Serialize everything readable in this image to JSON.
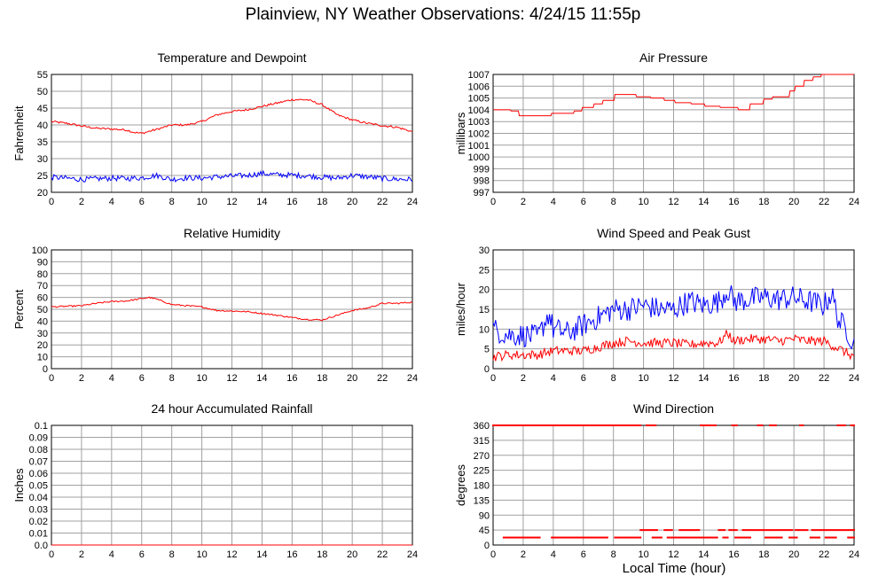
{
  "page": {
    "title": "Plainview, NY Weather Observations: 4/24/15 11:55p",
    "xlabel": "Local Time (hour)"
  },
  "chart_data": [
    {
      "id": "temp",
      "type": "line",
      "title": "Temperature and Dewpoint",
      "ylabel": "Fahrenheit",
      "xlim": [
        0,
        24
      ],
      "ylim": [
        20,
        55
      ],
      "xticks": [
        0,
        2,
        4,
        6,
        8,
        10,
        12,
        14,
        16,
        18,
        20,
        22,
        24
      ],
      "yticks": [
        20,
        25,
        30,
        35,
        40,
        45,
        50,
        55
      ],
      "ytick_labels": [
        "20",
        "25",
        "30",
        "35",
        "40",
        "45",
        "50",
        "55"
      ],
      "grid": true,
      "series": [
        {
          "color": "#ff0000",
          "mode": "line",
          "jitter": 0.3,
          "x": [
            0,
            1,
            2,
            3,
            4,
            5,
            5.5,
            6,
            7,
            8,
            9,
            10,
            11,
            12,
            13,
            14,
            15,
            16,
            17,
            18,
            19,
            20,
            21,
            22,
            23,
            24
          ],
          "y": [
            41,
            40.5,
            39.7,
            39,
            38.8,
            38.5,
            37.8,
            37.5,
            38.7,
            40,
            40,
            41,
            43,
            44,
            44.5,
            45.5,
            46.5,
            47.5,
            47.5,
            46,
            43,
            41.5,
            40.5,
            39.8,
            39.3,
            38
          ]
        },
        {
          "color": "#0000ff",
          "mode": "line",
          "jitter": 0.8,
          "x": [
            0,
            1,
            2,
            3,
            4,
            5,
            6,
            7,
            8,
            9,
            10,
            11,
            12,
            13,
            14,
            15,
            16,
            17,
            18,
            19,
            20,
            21,
            22,
            23,
            24
          ],
          "y": [
            24.5,
            24.2,
            23.8,
            24,
            24.2,
            24.1,
            24.3,
            25,
            23.8,
            24.3,
            24.2,
            24.6,
            24.8,
            25,
            25.6,
            25.2,
            25.1,
            24.9,
            24.5,
            24.2,
            25,
            24.6,
            24.1,
            23.9,
            23.8
          ]
        }
      ]
    },
    {
      "id": "pressure",
      "type": "line",
      "title": "Air Pressure",
      "ylabel": "millibars",
      "xlim": [
        0,
        24
      ],
      "ylim": [
        997,
        1007
      ],
      "xticks": [
        0,
        2,
        4,
        6,
        8,
        10,
        12,
        14,
        16,
        18,
        20,
        22,
        24
      ],
      "yticks": [
        997,
        998,
        999,
        1000,
        1001,
        1002,
        1003,
        1004,
        1005,
        1006,
        1007
      ],
      "ytick_labels": [
        "997",
        "998",
        "999",
        "1000",
        "1001",
        "1002",
        "1003",
        "1004",
        "1005",
        "1006",
        "1007"
      ],
      "grid": true,
      "series": [
        {
          "color": "#ff0000",
          "mode": "step",
          "jitter": 0,
          "x": [
            0,
            1.2,
            1.7,
            3.9,
            5.4,
            5.9,
            6.7,
            7.3,
            8.1,
            9.5,
            10.5,
            11.4,
            12.1,
            13.2,
            14.1,
            15.1,
            16.3,
            17.1,
            18,
            18.6,
            19.7,
            20.1,
            20.7,
            21.3,
            21.8,
            24
          ],
          "y": [
            1004,
            1003.9,
            1003.5,
            1003.7,
            1003.9,
            1004.2,
            1004.5,
            1004.8,
            1005.3,
            1005.1,
            1005,
            1004.8,
            1004.6,
            1004.5,
            1004.3,
            1004.2,
            1004,
            1004.5,
            1004.9,
            1005.1,
            1005.6,
            1006,
            1006.5,
            1006.8,
            1007,
            1007
          ]
        }
      ]
    },
    {
      "id": "humidity",
      "type": "line",
      "title": "Relative Humidity",
      "ylabel": "Percent",
      "xlim": [
        0,
        24
      ],
      "ylim": [
        0,
        100
      ],
      "xticks": [
        0,
        2,
        4,
        6,
        8,
        10,
        12,
        14,
        16,
        18,
        20,
        22,
        24
      ],
      "yticks": [
        0,
        10,
        20,
        30,
        40,
        50,
        60,
        70,
        80,
        90,
        100
      ],
      "ytick_labels": [
        "0",
        "10",
        "20",
        "30",
        "40",
        "50",
        "60",
        "70",
        "80",
        "90",
        "100"
      ],
      "grid": true,
      "series": [
        {
          "color": "#ff0000",
          "mode": "line",
          "jitter": 0.6,
          "x": [
            0,
            1,
            2,
            3,
            4,
            5,
            6,
            6.5,
            7,
            8,
            9,
            10,
            11,
            12,
            13,
            14,
            15,
            16,
            17,
            18,
            19,
            20,
            21,
            22,
            23,
            24
          ],
          "y": [
            52,
            52.5,
            53,
            55,
            56.5,
            57,
            59,
            60,
            58.5,
            54,
            53,
            52,
            49,
            48.5,
            48,
            46.5,
            45,
            43,
            41.5,
            41,
            45,
            49,
            51,
            55,
            55,
            56
          ]
        }
      ]
    },
    {
      "id": "wind",
      "type": "line",
      "title": "Wind Speed and Peak Gust",
      "ylabel": "miles/hour",
      "xlim": [
        0,
        24
      ],
      "ylim": [
        0,
        30
      ],
      "xticks": [
        0,
        2,
        4,
        6,
        8,
        10,
        12,
        14,
        16,
        18,
        20,
        22,
        24
      ],
      "yticks": [
        0,
        5,
        10,
        15,
        20,
        25,
        30
      ],
      "ytick_labels": [
        "0",
        "5",
        "10",
        "15",
        "20",
        "25",
        "30"
      ],
      "grid": true,
      "series": [
        {
          "color": "#0000ff",
          "mode": "line",
          "jitter": 3.0,
          "x": [
            0,
            1,
            2,
            3,
            3.7,
            4,
            5,
            6,
            7,
            8,
            9,
            10,
            11,
            12,
            13,
            14,
            15,
            15.6,
            16,
            17,
            18,
            19,
            20,
            21,
            22,
            22.5,
            23,
            23.5,
            24
          ],
          "y": [
            10,
            8.5,
            8.5,
            8,
            14,
            10,
            9,
            11,
            13,
            15,
            15,
            16,
            15,
            15,
            17,
            16,
            17,
            20,
            17,
            17.5,
            18,
            17.5,
            18,
            17,
            16,
            19,
            12,
            10,
            6
          ]
        },
        {
          "color": "#ff0000",
          "mode": "line",
          "jitter": 1.2,
          "x": [
            0,
            1,
            2,
            3,
            4,
            5,
            6,
            7,
            8,
            9,
            10,
            11,
            12,
            13,
            14,
            15,
            15.6,
            16,
            17,
            18,
            19,
            20,
            21,
            22,
            23,
            24
          ],
          "y": [
            3,
            3.5,
            3.5,
            3.5,
            4.5,
            4.5,
            4.5,
            5.5,
            6.5,
            7,
            6.5,
            6.5,
            6.5,
            6,
            6.5,
            6.5,
            9,
            7,
            7.5,
            7.5,
            7,
            7.5,
            7,
            7,
            5,
            3
          ]
        }
      ]
    },
    {
      "id": "rain",
      "type": "line",
      "title": "24 hour Accumulated Rainfall",
      "ylabel": "Inches",
      "xlim": [
        0,
        24
      ],
      "ylim": [
        0,
        0.1
      ],
      "xticks": [
        0,
        2,
        4,
        6,
        8,
        10,
        12,
        14,
        16,
        18,
        20,
        22,
        24
      ],
      "yticks": [
        0,
        0.01,
        0.02,
        0.03,
        0.04,
        0.05,
        0.06,
        0.07,
        0.08,
        0.09,
        0.1
      ],
      "ytick_labels": [
        "0.0",
        "0.01",
        "0.02",
        "0.03",
        "0.04",
        "0.05",
        "0.06",
        "0.07",
        "0.08",
        "0.09",
        "0.1"
      ],
      "grid": true,
      "series": [
        {
          "color": "#ff0000",
          "mode": "line",
          "jitter": 0,
          "x": [
            0,
            24
          ],
          "y": [
            0,
            0
          ]
        }
      ]
    },
    {
      "id": "direction",
      "type": "scatter",
      "title": "Wind Direction",
      "ylabel": "degrees",
      "xlim": [
        0,
        24
      ],
      "ylim": [
        0,
        360
      ],
      "xticks": [
        0,
        2,
        4,
        6,
        8,
        10,
        12,
        14,
        16,
        18,
        20,
        22,
        24
      ],
      "yticks": [
        0,
        45,
        90,
        135,
        180,
        225,
        270,
        315,
        360
      ],
      "ytick_labels": [
        "0",
        "45",
        "90",
        "135",
        "180",
        "225",
        "270",
        "315",
        "360"
      ],
      "grid": true,
      "series": [
        {
          "color": "#ff0000",
          "mode": "dots",
          "segments": [
            [
              0,
              9.8,
              360
            ],
            [
              10.2,
              10.8,
              360
            ],
            [
              13.8,
              14.8,
              360
            ],
            [
              15.9,
              16.2,
              360
            ],
            [
              17.6,
              17.9,
              360
            ],
            [
              18.4,
              18.8,
              360
            ],
            [
              20.4,
              20.6,
              360
            ],
            [
              22.9,
              23.4,
              360
            ],
            [
              23.8,
              24,
              360
            ],
            [
              0.7,
              3.1,
              22.5
            ],
            [
              3.9,
              7.6,
              22.5
            ],
            [
              8.1,
              9.8,
              22.5
            ],
            [
              10.6,
              11.2,
              22.5
            ],
            [
              11.6,
              14.9,
              22.5
            ],
            [
              15.3,
              15.6,
              22.5
            ],
            [
              16.1,
              17.1,
              22.5
            ],
            [
              18.1,
              19.2,
              22.5
            ],
            [
              19.7,
              20.2,
              22.5
            ],
            [
              21.1,
              21.7,
              22.5
            ],
            [
              22.1,
              22.8,
              22.5
            ],
            [
              23.6,
              24,
              22.5
            ],
            [
              9.8,
              10.9,
              45
            ],
            [
              11.4,
              11.9,
              45
            ],
            [
              12.4,
              13.7,
              45
            ],
            [
              15,
              15.4,
              45
            ],
            [
              15.7,
              16.2,
              45
            ],
            [
              16.6,
              19.9,
              45
            ],
            [
              20.1,
              20.9,
              45
            ],
            [
              21.2,
              24,
              45
            ]
          ]
        }
      ]
    }
  ]
}
